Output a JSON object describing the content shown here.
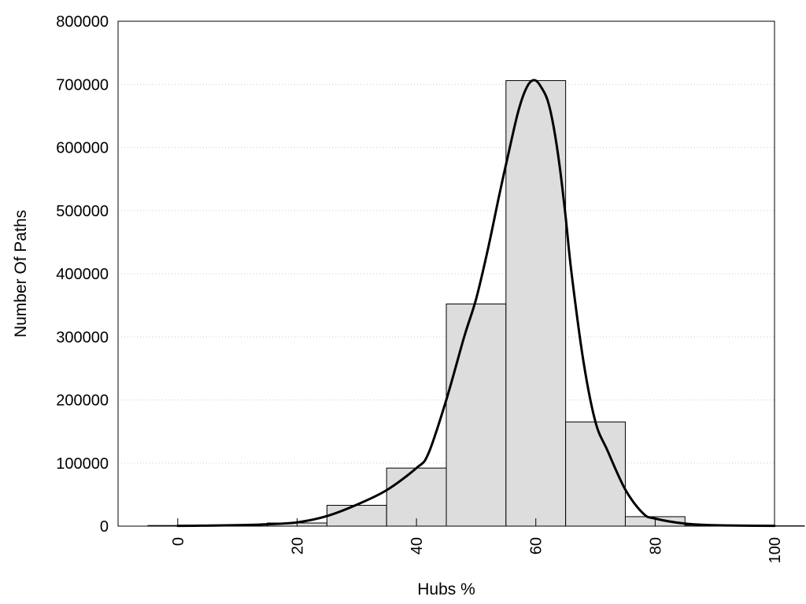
{
  "chart_data": {
    "type": "bar",
    "title": "",
    "xlabel": "Hubs %",
    "ylabel": "Number Of Paths",
    "xlim": [
      -10,
      100
    ],
    "ylim": [
      0,
      800000
    ],
    "x_ticks": [
      "0",
      "20",
      "40",
      "60",
      "80",
      "100"
    ],
    "y_ticks": [
      "0",
      "100000",
      "200000",
      "300000",
      "400000",
      "500000",
      "600000",
      "700000",
      "800000"
    ],
    "grid": "horizontal dotted",
    "legend": "none",
    "bin_width": 10,
    "series": [
      {
        "kind": "histogram",
        "bin_centers": [
          0,
          10,
          20,
          30,
          40,
          50,
          60,
          70,
          80,
          90,
          100
        ],
        "values": [
          1000,
          2000,
          5000,
          33000,
          92000,
          352000,
          706000,
          165000,
          15000,
          1500,
          500
        ],
        "fill_color": "#dddddd",
        "stroke_color": "#000000"
      },
      {
        "kind": "line",
        "x": [
          0,
          5,
          10,
          15,
          20,
          25,
          30,
          35,
          40,
          42,
          45,
          48,
          50,
          52,
          54,
          56,
          57,
          58,
          59,
          60,
          61,
          62,
          63,
          64,
          65,
          66,
          68,
          70,
          72,
          75,
          78,
          80,
          85,
          90,
          95,
          100
        ],
        "y": [
          500,
          800,
          1500,
          3000,
          6000,
          16000,
          34000,
          57000,
          92000,
          115000,
          200000,
          300000,
          360000,
          440000,
          530000,
          615000,
          655000,
          685000,
          703000,
          706000,
          694000,
          674000,
          632000,
          570000,
          490000,
          400000,
          260000,
          165000,
          120000,
          58000,
          20000,
          12000,
          4000,
          1500,
          800,
          500
        ],
        "color": "#000000"
      }
    ]
  }
}
